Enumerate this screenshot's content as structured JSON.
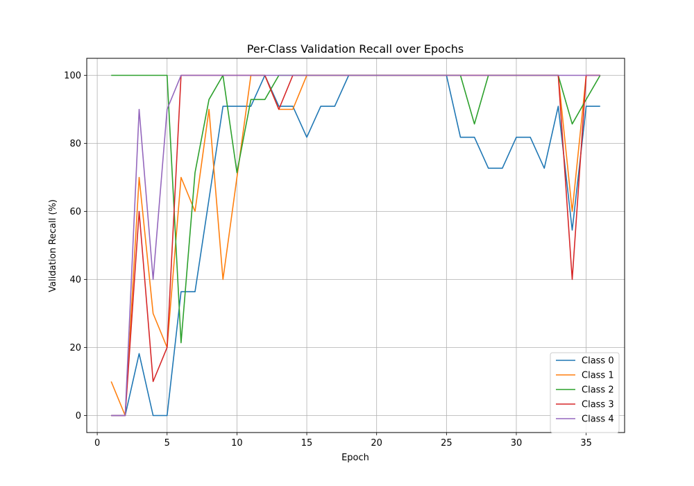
{
  "chart_data": {
    "type": "line",
    "title": "Per-Class Validation Recall over Epochs",
    "xlabel": "Epoch",
    "ylabel": "Validation Recall (%)",
    "xlim": [
      -0.75,
      37.75
    ],
    "ylim": [
      -5,
      105
    ],
    "xticks": [
      0,
      5,
      10,
      15,
      20,
      25,
      30,
      35
    ],
    "yticks": [
      0,
      20,
      40,
      60,
      80,
      100
    ],
    "grid": true,
    "legend_position": "lower right",
    "x": [
      1,
      2,
      3,
      4,
      5,
      6,
      7,
      8,
      9,
      10,
      11,
      12,
      13,
      14,
      15,
      16,
      17,
      18,
      19,
      20,
      21,
      22,
      23,
      24,
      25,
      26,
      27,
      28,
      29,
      30,
      31,
      32,
      33,
      34,
      35,
      36
    ],
    "series": [
      {
        "name": "Class 0",
        "color": "#1f77b4",
        "values": [
          0,
          0,
          18.2,
          0,
          0,
          36.4,
          36.4,
          63.6,
          90.9,
          90.9,
          90.9,
          100,
          90.9,
          90.9,
          81.8,
          90.9,
          90.9,
          100,
          100,
          100,
          100,
          100,
          100,
          100,
          100,
          81.8,
          81.8,
          72.7,
          72.7,
          81.8,
          81.8,
          72.7,
          90.9,
          54.5,
          90.9,
          90.9
        ]
      },
      {
        "name": "Class 1",
        "color": "#ff7f0e",
        "values": [
          10,
          0,
          70,
          30,
          20,
          70,
          60,
          90,
          40,
          70,
          100,
          100,
          90,
          90,
          100,
          100,
          100,
          100,
          100,
          100,
          100,
          100,
          100,
          100,
          100,
          100,
          100,
          100,
          100,
          100,
          100,
          100,
          100,
          60,
          100,
          100
        ]
      },
      {
        "name": "Class 2",
        "color": "#2ca02c",
        "values": [
          100,
          100,
          100,
          100,
          100,
          21.4,
          71.4,
          92.9,
          100,
          71.4,
          92.9,
          92.9,
          100,
          100,
          100,
          100,
          100,
          100,
          100,
          100,
          100,
          100,
          100,
          100,
          100,
          100,
          85.7,
          100,
          100,
          100,
          100,
          100,
          100,
          85.7,
          92.9,
          100
        ]
      },
      {
        "name": "Class 3",
        "color": "#d62728",
        "values": [
          0,
          0,
          60,
          10,
          20,
          100,
          100,
          100,
          100,
          100,
          100,
          100,
          90,
          100,
          100,
          100,
          100,
          100,
          100,
          100,
          100,
          100,
          100,
          100,
          100,
          100,
          100,
          100,
          100,
          100,
          100,
          100,
          100,
          40,
          100,
          100
        ]
      },
      {
        "name": "Class 4",
        "color": "#9467bd",
        "values": [
          0,
          0,
          90,
          40,
          90,
          100,
          100,
          100,
          100,
          100,
          100,
          100,
          100,
          100,
          100,
          100,
          100,
          100,
          100,
          100,
          100,
          100,
          100,
          100,
          100,
          100,
          100,
          100,
          100,
          100,
          100,
          100,
          100,
          100,
          100,
          100
        ]
      }
    ]
  }
}
